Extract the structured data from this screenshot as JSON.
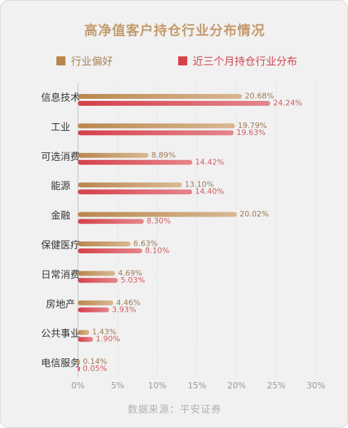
{
  "chart_data": {
    "type": "bar",
    "orientation": "horizontal",
    "title": "高净值客户持仓行业分布情况",
    "categories": [
      "信息技术",
      "工业",
      "可选消费",
      "能源",
      "金融",
      "保健医疗",
      "日常消费",
      "房地产",
      "公共事业",
      "电信服务"
    ],
    "series": [
      {
        "name": "行业偏好",
        "color": "#b9874e",
        "label_color": "#9c7a52",
        "values": [
          20.68,
          19.79,
          8.89,
          13.1,
          20.02,
          6.63,
          4.69,
          4.46,
          1.43,
          0.14
        ],
        "labels": [
          "20.68%",
          "19.79%",
          "8.89%",
          "13.10%",
          "20.02%",
          "6.63%",
          "4.69%",
          "4.46%",
          "1.43%",
          "0.14%"
        ]
      },
      {
        "name": "近三个月持仓行业分布",
        "color": "#d6404a",
        "label_color": "#d05a60",
        "values": [
          24.24,
          19.63,
          14.42,
          14.4,
          8.3,
          8.1,
          5.03,
          3.93,
          1.9,
          0.05
        ],
        "labels": [
          "24.24%",
          "19.63%",
          "14.42%",
          "14.40%",
          "8.30%",
          "8.10%",
          "5.03%",
          "3.93%",
          "1.90%",
          "0.05%"
        ]
      }
    ],
    "xlim": [
      0,
      30
    ],
    "xticks": [
      0,
      5,
      10,
      15,
      20,
      25,
      30
    ],
    "xtick_labels": [
      "0%",
      "5%",
      "10%",
      "15%",
      "20%",
      "25%",
      "30%"
    ],
    "grid": true,
    "legend_position": "top"
  },
  "source": "数据来源：平安证券"
}
